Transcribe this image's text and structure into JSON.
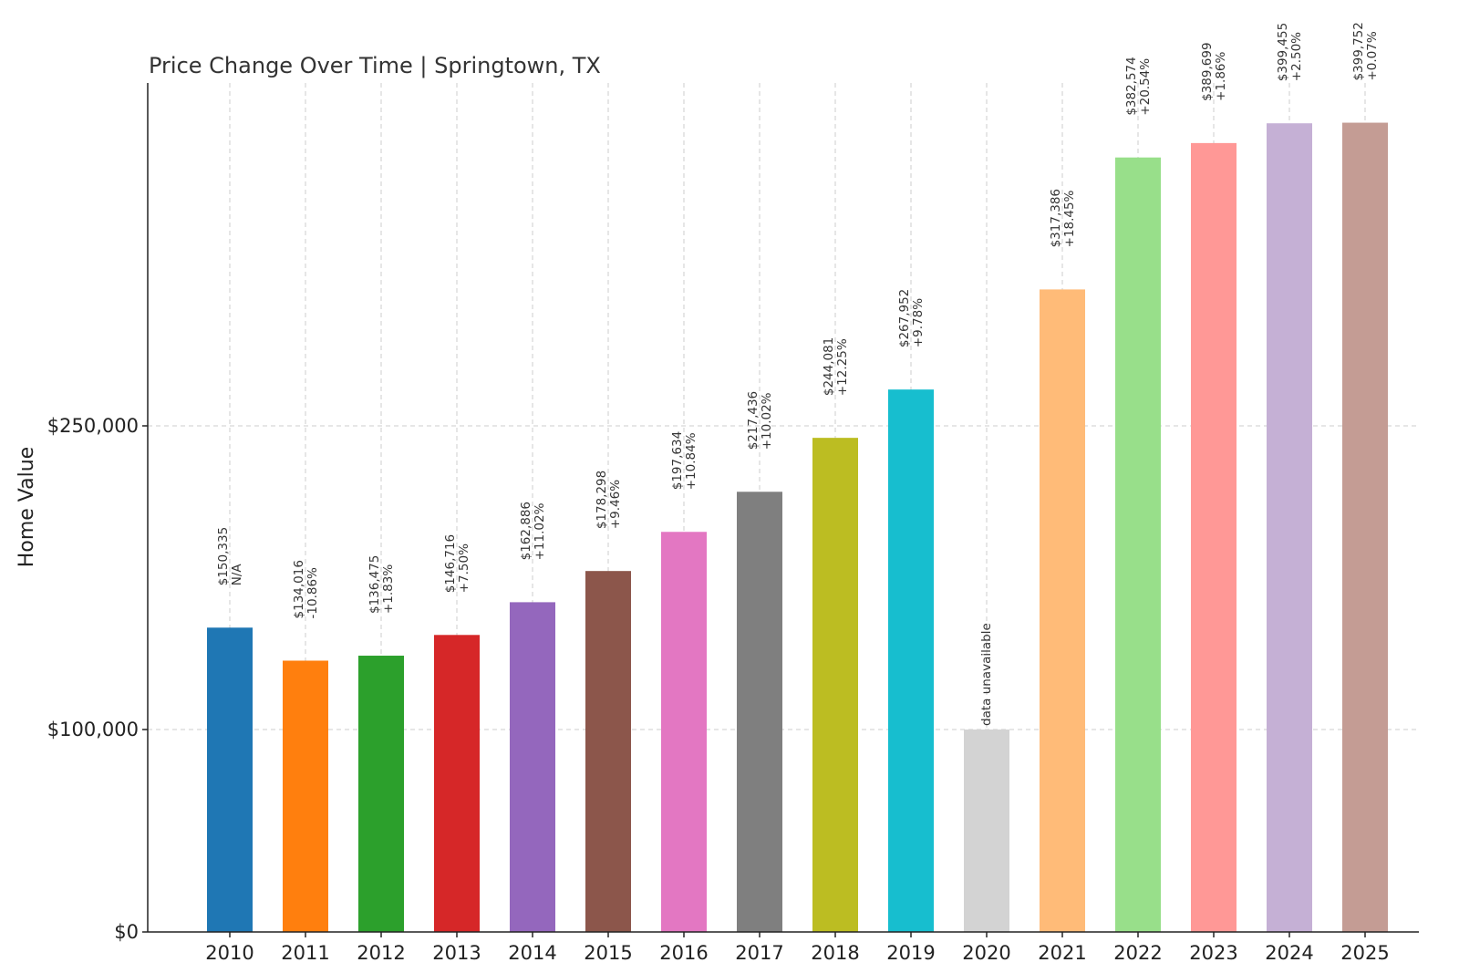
{
  "chart_data": {
    "type": "bar",
    "title": "Price Change Over Time | Springtown, TX",
    "xlabel": "",
    "ylabel": "Home Value",
    "ylim": [
      0,
      420000
    ],
    "yticks": [
      {
        "value": 0,
        "label": "$0"
      },
      {
        "value": 100000,
        "label": "$100,000"
      },
      {
        "value": 250000,
        "label": "$250,000"
      }
    ],
    "grid": true,
    "categories": [
      "2010",
      "2011",
      "2012",
      "2013",
      "2014",
      "2015",
      "2016",
      "2017",
      "2018",
      "2019",
      "2020",
      "2021",
      "2022",
      "2023",
      "2024",
      "2025"
    ],
    "values": [
      150335,
      134016,
      136475,
      146716,
      162886,
      178298,
      197634,
      217436,
      244081,
      267952,
      100000,
      317386,
      382574,
      389699,
      399455,
      399752
    ],
    "price_labels": [
      "$150,335",
      "$134,016",
      "$136,475",
      "$146,716",
      "$162,886",
      "$178,298",
      "$197,634",
      "$217,436",
      "$244,081",
      "$267,952",
      "",
      "$317,386",
      "$382,574",
      "$389,699",
      "$399,455",
      "$399,752"
    ],
    "change_labels": [
      "N/A",
      "-10.86%",
      "+1.83%",
      "+7.50%",
      "+11.02%",
      "+9.46%",
      "+10.84%",
      "+10.02%",
      "+12.25%",
      "+9.78%",
      "",
      "+18.45%",
      "+20.54%",
      "+1.86%",
      "+2.50%",
      "+0.07%"
    ],
    "unavailable_label": "data unavailable",
    "colors": [
      "#1f77b4",
      "#ff7f0e",
      "#2ca02c",
      "#d62728",
      "#9467bd",
      "#8c564b",
      "#e377c2",
      "#7f7f7f",
      "#bcbd22",
      "#17becf",
      "#d3d3d3",
      "#ffbb78",
      "#98df8a",
      "#ff9896",
      "#c5b0d5",
      "#c49c94"
    ]
  }
}
